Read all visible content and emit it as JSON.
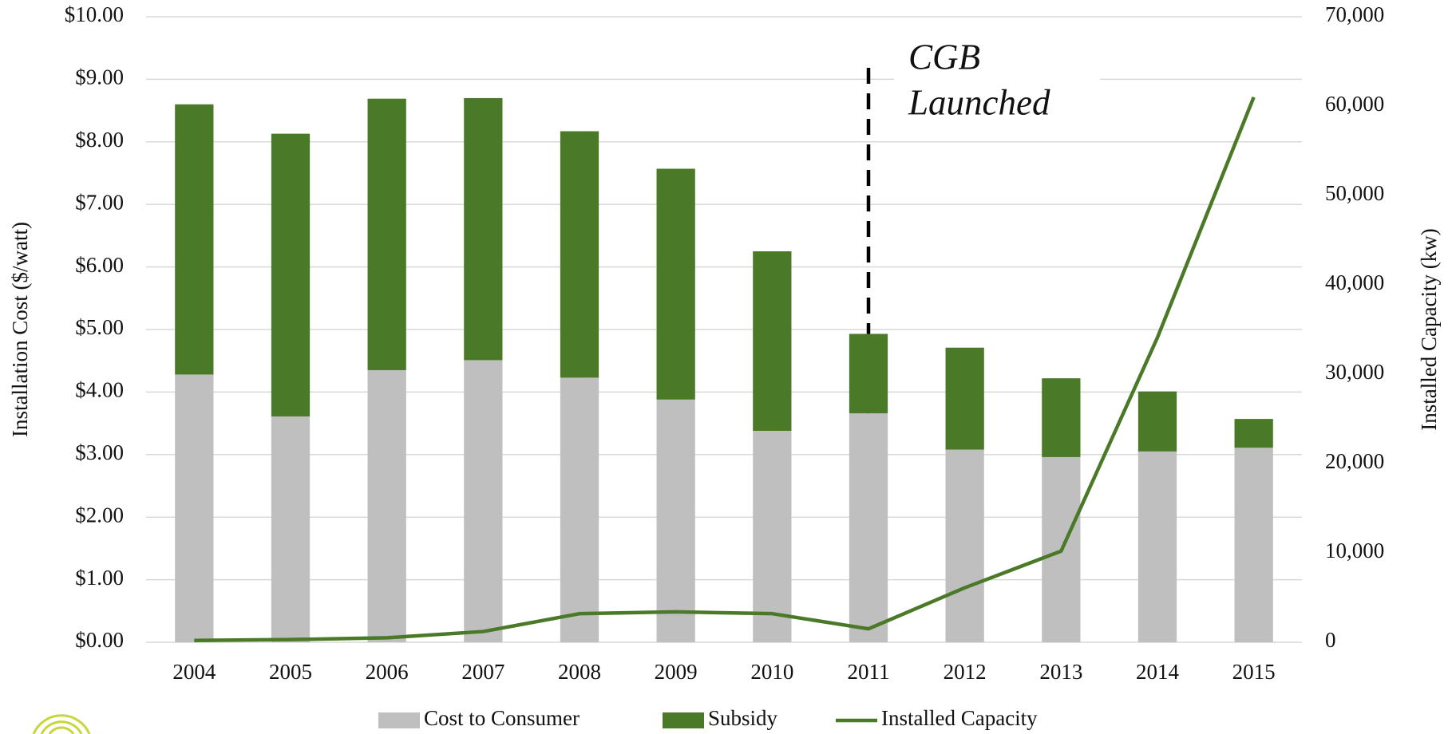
{
  "chart_data": {
    "type": "bar",
    "y_label": "Installation Cost ($/watt)",
    "y2_label": "Installed Capacity (kw)",
    "categories": [
      "2004",
      "2005",
      "2006",
      "2007",
      "2008",
      "2009",
      "2010",
      "2011",
      "2012",
      "2013",
      "2014",
      "2015"
    ],
    "series": [
      {
        "name": "Cost to Consumer",
        "type": "bar",
        "color": "#bfbfbf",
        "values": [
          4.28,
          3.61,
          4.35,
          4.51,
          4.23,
          3.88,
          3.38,
          3.66,
          3.08,
          2.96,
          3.05,
          3.11
        ]
      },
      {
        "name": "Subsidy",
        "type": "bar",
        "color": "#4a7a28",
        "values": [
          4.32,
          4.52,
          4.34,
          4.19,
          3.94,
          3.69,
          2.87,
          1.27,
          1.63,
          1.26,
          0.96,
          0.46
        ]
      },
      {
        "name": "Installed Capacity",
        "type": "line",
        "axis": "y2",
        "color": "#4a7a28",
        "values": [
          200,
          300,
          500,
          1200,
          3200,
          3400,
          3200,
          1500,
          6100,
          10200,
          34100,
          61000
        ]
      }
    ],
    "ylim": [
      0,
      10
    ],
    "yticks": [
      {
        "value": 0,
        "label": "$0.00"
      },
      {
        "value": 1,
        "label": "$1.00"
      },
      {
        "value": 2,
        "label": "$2.00"
      },
      {
        "value": 3,
        "label": "$3.00"
      },
      {
        "value": 4,
        "label": "$4.00"
      },
      {
        "value": 5,
        "label": "$5.00"
      },
      {
        "value": 6,
        "label": "$6.00"
      },
      {
        "value": 7,
        "label": "$7.00"
      },
      {
        "value": 8,
        "label": "$8.00"
      },
      {
        "value": 9,
        "label": "$9.00"
      },
      {
        "value": 10,
        "label": "$10.00"
      }
    ],
    "y2lim": [
      0,
      70000
    ],
    "y2ticks": [
      0,
      {
        "value": 10000,
        "label": "10,000"
      },
      {
        "value": 20000,
        "label": "20,000"
      },
      {
        "value": 30000,
        "label": "30,000"
      },
      {
        "value": 40000,
        "label": "40,000"
      },
      {
        "value": 50000,
        "label": "50,000"
      },
      {
        "value": 60000,
        "label": "60,000"
      },
      {
        "value": 70000,
        "label": "70,000"
      }
    ],
    "grid": true,
    "legend": "bottom",
    "annotation": {
      "lines": [
        "CGB",
        "Launched"
      ],
      "at": "2011"
    }
  }
}
